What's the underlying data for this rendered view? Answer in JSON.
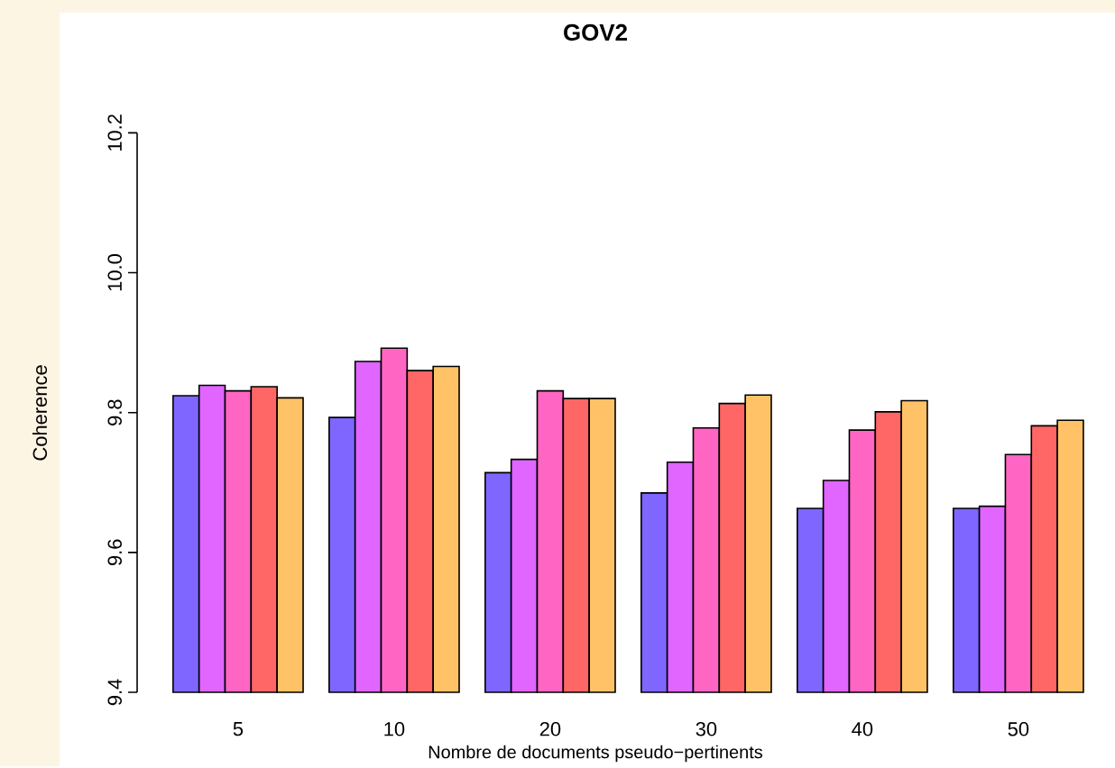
{
  "chart_data": {
    "type": "bar",
    "title": "GOV2",
    "xlabel": "Nombre de documents pseudo−pertinents",
    "ylabel": "Coherence",
    "categories": [
      "5",
      "10",
      "20",
      "30",
      "40",
      "50"
    ],
    "series": [
      {
        "color": "#7f66ff",
        "values": [
          9.824,
          9.793,
          9.714,
          9.685,
          9.663,
          9.663
        ]
      },
      {
        "color": "#e066ff",
        "values": [
          9.839,
          9.873,
          9.733,
          9.729,
          9.703,
          9.666
        ]
      },
      {
        "color": "#ff66c4",
        "values": [
          9.831,
          9.892,
          9.831,
          9.778,
          9.775,
          9.74
        ]
      },
      {
        "color": "#ff6666",
        "values": [
          9.837,
          9.86,
          9.82,
          9.813,
          9.801,
          9.781
        ]
      },
      {
        "color": "#ffc266",
        "values": [
          9.821,
          9.866,
          9.82,
          9.825,
          9.817,
          9.789
        ]
      }
    ],
    "ylim": [
      9.4,
      10.2
    ],
    "yticks": [
      9.4,
      9.6,
      9.8,
      {
        "value": 10.0,
        "label": "10.0"
      },
      10.2
    ],
    "grid": false
  }
}
